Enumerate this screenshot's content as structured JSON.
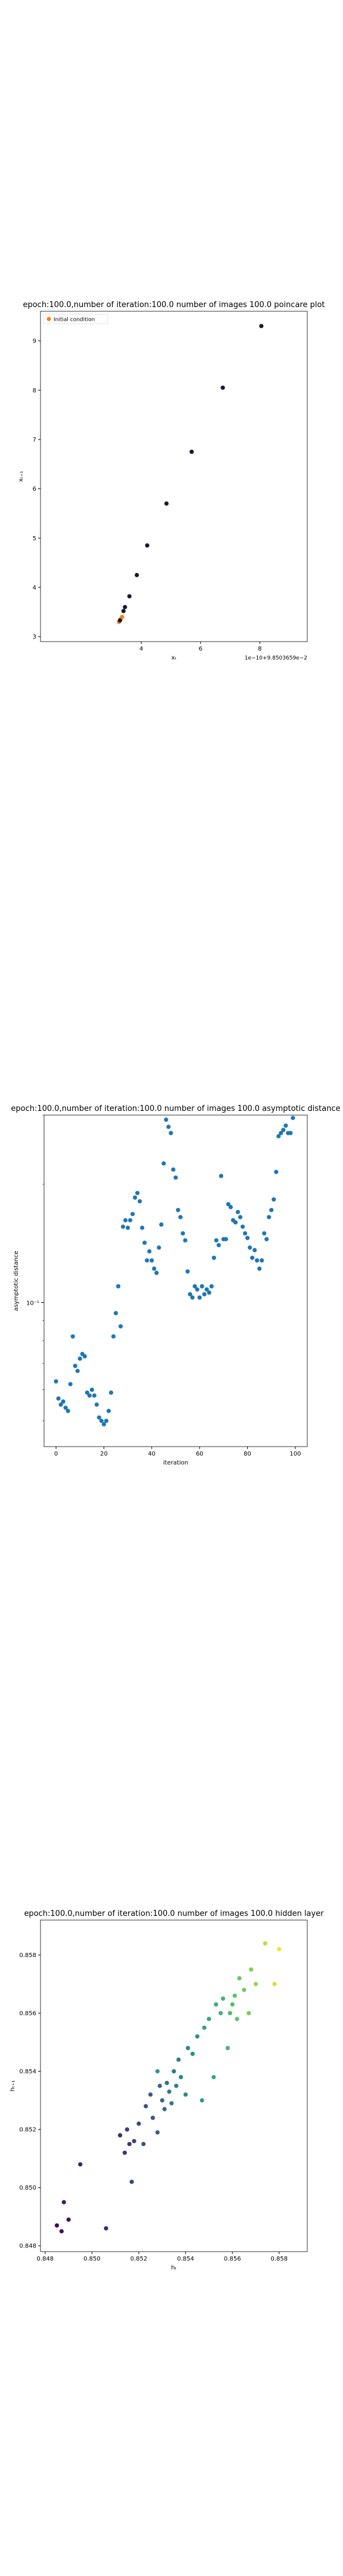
{
  "chart_data": [
    {
      "type": "scatter",
      "title": "epoch:100.0,number of iteration:100.0 number of images 100.0 poincare plot",
      "xlabel": "xₜ",
      "ylabel": "xₜ₊₁",
      "offset_text": "1e−10+9.8503659e−2",
      "legend_label": "Initial condition",
      "legend_placement": "upper-left",
      "xlim": [
        0.6,
        9.6
      ],
      "ylim": [
        2.9,
        9.6
      ],
      "xticks": [
        4,
        6,
        8
      ],
      "yticks": [
        3,
        4,
        5,
        6,
        7,
        8,
        9
      ],
      "points": [
        {
          "x": 3.25,
          "y": 3.3,
          "color": "#ff7f0e"
        },
        {
          "x": 3.3,
          "y": 3.35,
          "color": "#ff7f0e"
        },
        {
          "x": 3.35,
          "y": 3.4,
          "color": "#ff7f0e"
        },
        {
          "x": 3.28,
          "y": 3.33,
          "color": "#1a1a2e"
        },
        {
          "x": 3.4,
          "y": 3.52,
          "color": "#1a1a2e"
        },
        {
          "x": 3.45,
          "y": 3.6,
          "color": "#1a1a2e"
        },
        {
          "x": 3.6,
          "y": 3.82,
          "color": "#1a1a2e"
        },
        {
          "x": 3.85,
          "y": 4.25,
          "color": "#1a1a2e"
        },
        {
          "x": 4.2,
          "y": 4.85,
          "color": "#1a1a2e"
        },
        {
          "x": 4.85,
          "y": 5.7,
          "color": "#1a1a2e"
        },
        {
          "x": 5.7,
          "y": 6.75,
          "color": "#1a1a2e"
        },
        {
          "x": 6.75,
          "y": 8.05,
          "color": "#1a1a2e"
        },
        {
          "x": 8.05,
          "y": 9.3,
          "color": "#1a1a2e"
        }
      ]
    },
    {
      "type": "scatter",
      "title": "epoch:100.0,number of iteration:100.0  number of images 100.0 asymptotic distance",
      "xlabel": "iteration",
      "ylabel": "asymptotic distance",
      "yscale": "log",
      "ytick_labels": [
        "10⁻¹"
      ],
      "xlim": [
        -5,
        105
      ],
      "ylim": [
        0.043,
        0.3
      ],
      "xticks": [
        0,
        20,
        40,
        60,
        80,
        100
      ],
      "color": "#1f77b4",
      "x": [
        0,
        1,
        2,
        3,
        4,
        5,
        6,
        7,
        8,
        9,
        10,
        11,
        12,
        13,
        14,
        15,
        16,
        17,
        18,
        19,
        20,
        21,
        22,
        23,
        24,
        25,
        26,
        27,
        28,
        29,
        30,
        31,
        32,
        33,
        34,
        35,
        36,
        37,
        38,
        39,
        40,
        41,
        42,
        43,
        44,
        45,
        46,
        47,
        48,
        49,
        50,
        51,
        52,
        53,
        54,
        55,
        56,
        57,
        58,
        59,
        60,
        61,
        62,
        63,
        64,
        65,
        66,
        67,
        68,
        69,
        70,
        71,
        72,
        73,
        74,
        75,
        76,
        77,
        78,
        79,
        80,
        81,
        82,
        83,
        84,
        85,
        86,
        87,
        88,
        89,
        90,
        91,
        92,
        93,
        94,
        95,
        96,
        97,
        98,
        99
      ],
      "y": [
        0.063,
        0.057,
        0.055,
        0.056,
        0.054,
        0.053,
        0.062,
        0.082,
        0.069,
        0.067,
        0.072,
        0.074,
        0.073,
        0.059,
        0.058,
        0.06,
        0.058,
        0.055,
        0.051,
        0.05,
        0.049,
        0.05,
        0.053,
        0.059,
        0.082,
        0.094,
        0.11,
        0.087,
        0.156,
        0.162,
        0.155,
        0.162,
        0.168,
        0.185,
        0.19,
        0.181,
        0.155,
        0.142,
        0.128,
        0.135,
        0.128,
        0.122,
        0.119,
        0.138,
        0.158,
        0.226,
        0.292,
        0.28,
        0.27,
        0.218,
        0.208,
        0.172,
        0.165,
        0.15,
        0.144,
        0.12,
        0.105,
        0.103,
        0.11,
        0.108,
        0.103,
        0.11,
        0.105,
        0.108,
        0.106,
        0.11,
        0.13,
        0.144,
        0.14,
        0.21,
        0.145,
        0.145,
        0.178,
        0.175,
        0.162,
        0.16,
        0.17,
        0.165,
        0.156,
        0.15,
        0.146,
        0.138,
        0.13,
        0.136,
        0.128,
        0.122,
        0.128,
        0.15,
        0.145,
        0.165,
        0.172,
        0.183,
        0.215,
        0.265,
        0.27,
        0.275,
        0.282,
        0.27,
        0.27,
        0.295
      ]
    },
    {
      "type": "scatter",
      "title": "epoch:100.0,number of iteration:100.0  number of images 100.0 hidden layer",
      "xlabel": "hₜ",
      "ylabel": "hₜ₊₁",
      "xlim": [
        0.8478,
        0.8592
      ],
      "ylim": [
        0.8478,
        0.8592
      ],
      "xticks": [
        0.848,
        0.85,
        0.852,
        0.854,
        0.856,
        0.858
      ],
      "yticks": [
        0.848,
        0.85,
        0.852,
        0.854,
        0.856,
        0.858
      ],
      "tick_labels": [
        "0.848",
        "0.850",
        "0.852",
        "0.854",
        "0.856",
        "0.858"
      ],
      "colormap": "viridis",
      "points": [
        {
          "x": 0.8485,
          "y": 0.8487,
          "c": 0.02
        },
        {
          "x": 0.8487,
          "y": 0.8485,
          "c": 0.05
        },
        {
          "x": 0.849,
          "y": 0.8489,
          "c": 0.06
        },
        {
          "x": 0.8488,
          "y": 0.8495,
          "c": 0.08
        },
        {
          "x": 0.8495,
          "y": 0.8508,
          "c": 0.1
        },
        {
          "x": 0.8506,
          "y": 0.8486,
          "c": 0.12
        },
        {
          "x": 0.8512,
          "y": 0.8518,
          "c": 0.13
        },
        {
          "x": 0.8514,
          "y": 0.8512,
          "c": 0.15
        },
        {
          "x": 0.8516,
          "y": 0.8515,
          "c": 0.16
        },
        {
          "x": 0.8515,
          "y": 0.852,
          "c": 0.18
        },
        {
          "x": 0.8518,
          "y": 0.8516,
          "c": 0.2
        },
        {
          "x": 0.8517,
          "y": 0.8502,
          "c": 0.21
        },
        {
          "x": 0.852,
          "y": 0.8522,
          "c": 0.22
        },
        {
          "x": 0.8522,
          "y": 0.8515,
          "c": 0.24
        },
        {
          "x": 0.8523,
          "y": 0.8528,
          "c": 0.25
        },
        {
          "x": 0.8525,
          "y": 0.8532,
          "c": 0.27
        },
        {
          "x": 0.8526,
          "y": 0.8524,
          "c": 0.28
        },
        {
          "x": 0.8528,
          "y": 0.8519,
          "c": 0.3
        },
        {
          "x": 0.8529,
          "y": 0.8535,
          "c": 0.32
        },
        {
          "x": 0.853,
          "y": 0.853,
          "c": 0.33
        },
        {
          "x": 0.8531,
          "y": 0.8527,
          "c": 0.35
        },
        {
          "x": 0.8532,
          "y": 0.8536,
          "c": 0.36
        },
        {
          "x": 0.8533,
          "y": 0.8533,
          "c": 0.38
        },
        {
          "x": 0.8534,
          "y": 0.8529,
          "c": 0.4
        },
        {
          "x": 0.8535,
          "y": 0.854,
          "c": 0.41
        },
        {
          "x": 0.8536,
          "y": 0.8535,
          "c": 0.43
        },
        {
          "x": 0.8537,
          "y": 0.8544,
          "c": 0.44
        },
        {
          "x": 0.8538,
          "y": 0.8538,
          "c": 0.46
        },
        {
          "x": 0.854,
          "y": 0.8532,
          "c": 0.48
        },
        {
          "x": 0.8541,
          "y": 0.8548,
          "c": 0.49
        },
        {
          "x": 0.8543,
          "y": 0.8546,
          "c": 0.51
        },
        {
          "x": 0.8545,
          "y": 0.8552,
          "c": 0.52
        },
        {
          "x": 0.8528,
          "y": 0.854,
          "c": 0.54
        },
        {
          "x": 0.8547,
          "y": 0.853,
          "c": 0.55
        },
        {
          "x": 0.8548,
          "y": 0.8555,
          "c": 0.57
        },
        {
          "x": 0.855,
          "y": 0.8558,
          "c": 0.59
        },
        {
          "x": 0.8552,
          "y": 0.8538,
          "c": 0.6
        },
        {
          "x": 0.8553,
          "y": 0.8563,
          "c": 0.62
        },
        {
          "x": 0.8555,
          "y": 0.856,
          "c": 0.64
        },
        {
          "x": 0.8556,
          "y": 0.8565,
          "c": 0.65
        },
        {
          "x": 0.8558,
          "y": 0.8548,
          "c": 0.67
        },
        {
          "x": 0.8559,
          "y": 0.856,
          "c": 0.68
        },
        {
          "x": 0.856,
          "y": 0.8563,
          "c": 0.7
        },
        {
          "x": 0.8561,
          "y": 0.8566,
          "c": 0.72
        },
        {
          "x": 0.8562,
          "y": 0.8558,
          "c": 0.74
        },
        {
          "x": 0.8563,
          "y": 0.8572,
          "c": 0.75
        },
        {
          "x": 0.8565,
          "y": 0.8568,
          "c": 0.77
        },
        {
          "x": 0.8567,
          "y": 0.856,
          "c": 0.79
        },
        {
          "x": 0.8568,
          "y": 0.8575,
          "c": 0.81
        },
        {
          "x": 0.857,
          "y": 0.857,
          "c": 0.83
        },
        {
          "x": 0.8574,
          "y": 0.8584,
          "c": 0.9
        },
        {
          "x": 0.8578,
          "y": 0.857,
          "c": 0.94
        },
        {
          "x": 0.858,
          "y": 0.8582,
          "c": 0.98
        }
      ]
    }
  ]
}
